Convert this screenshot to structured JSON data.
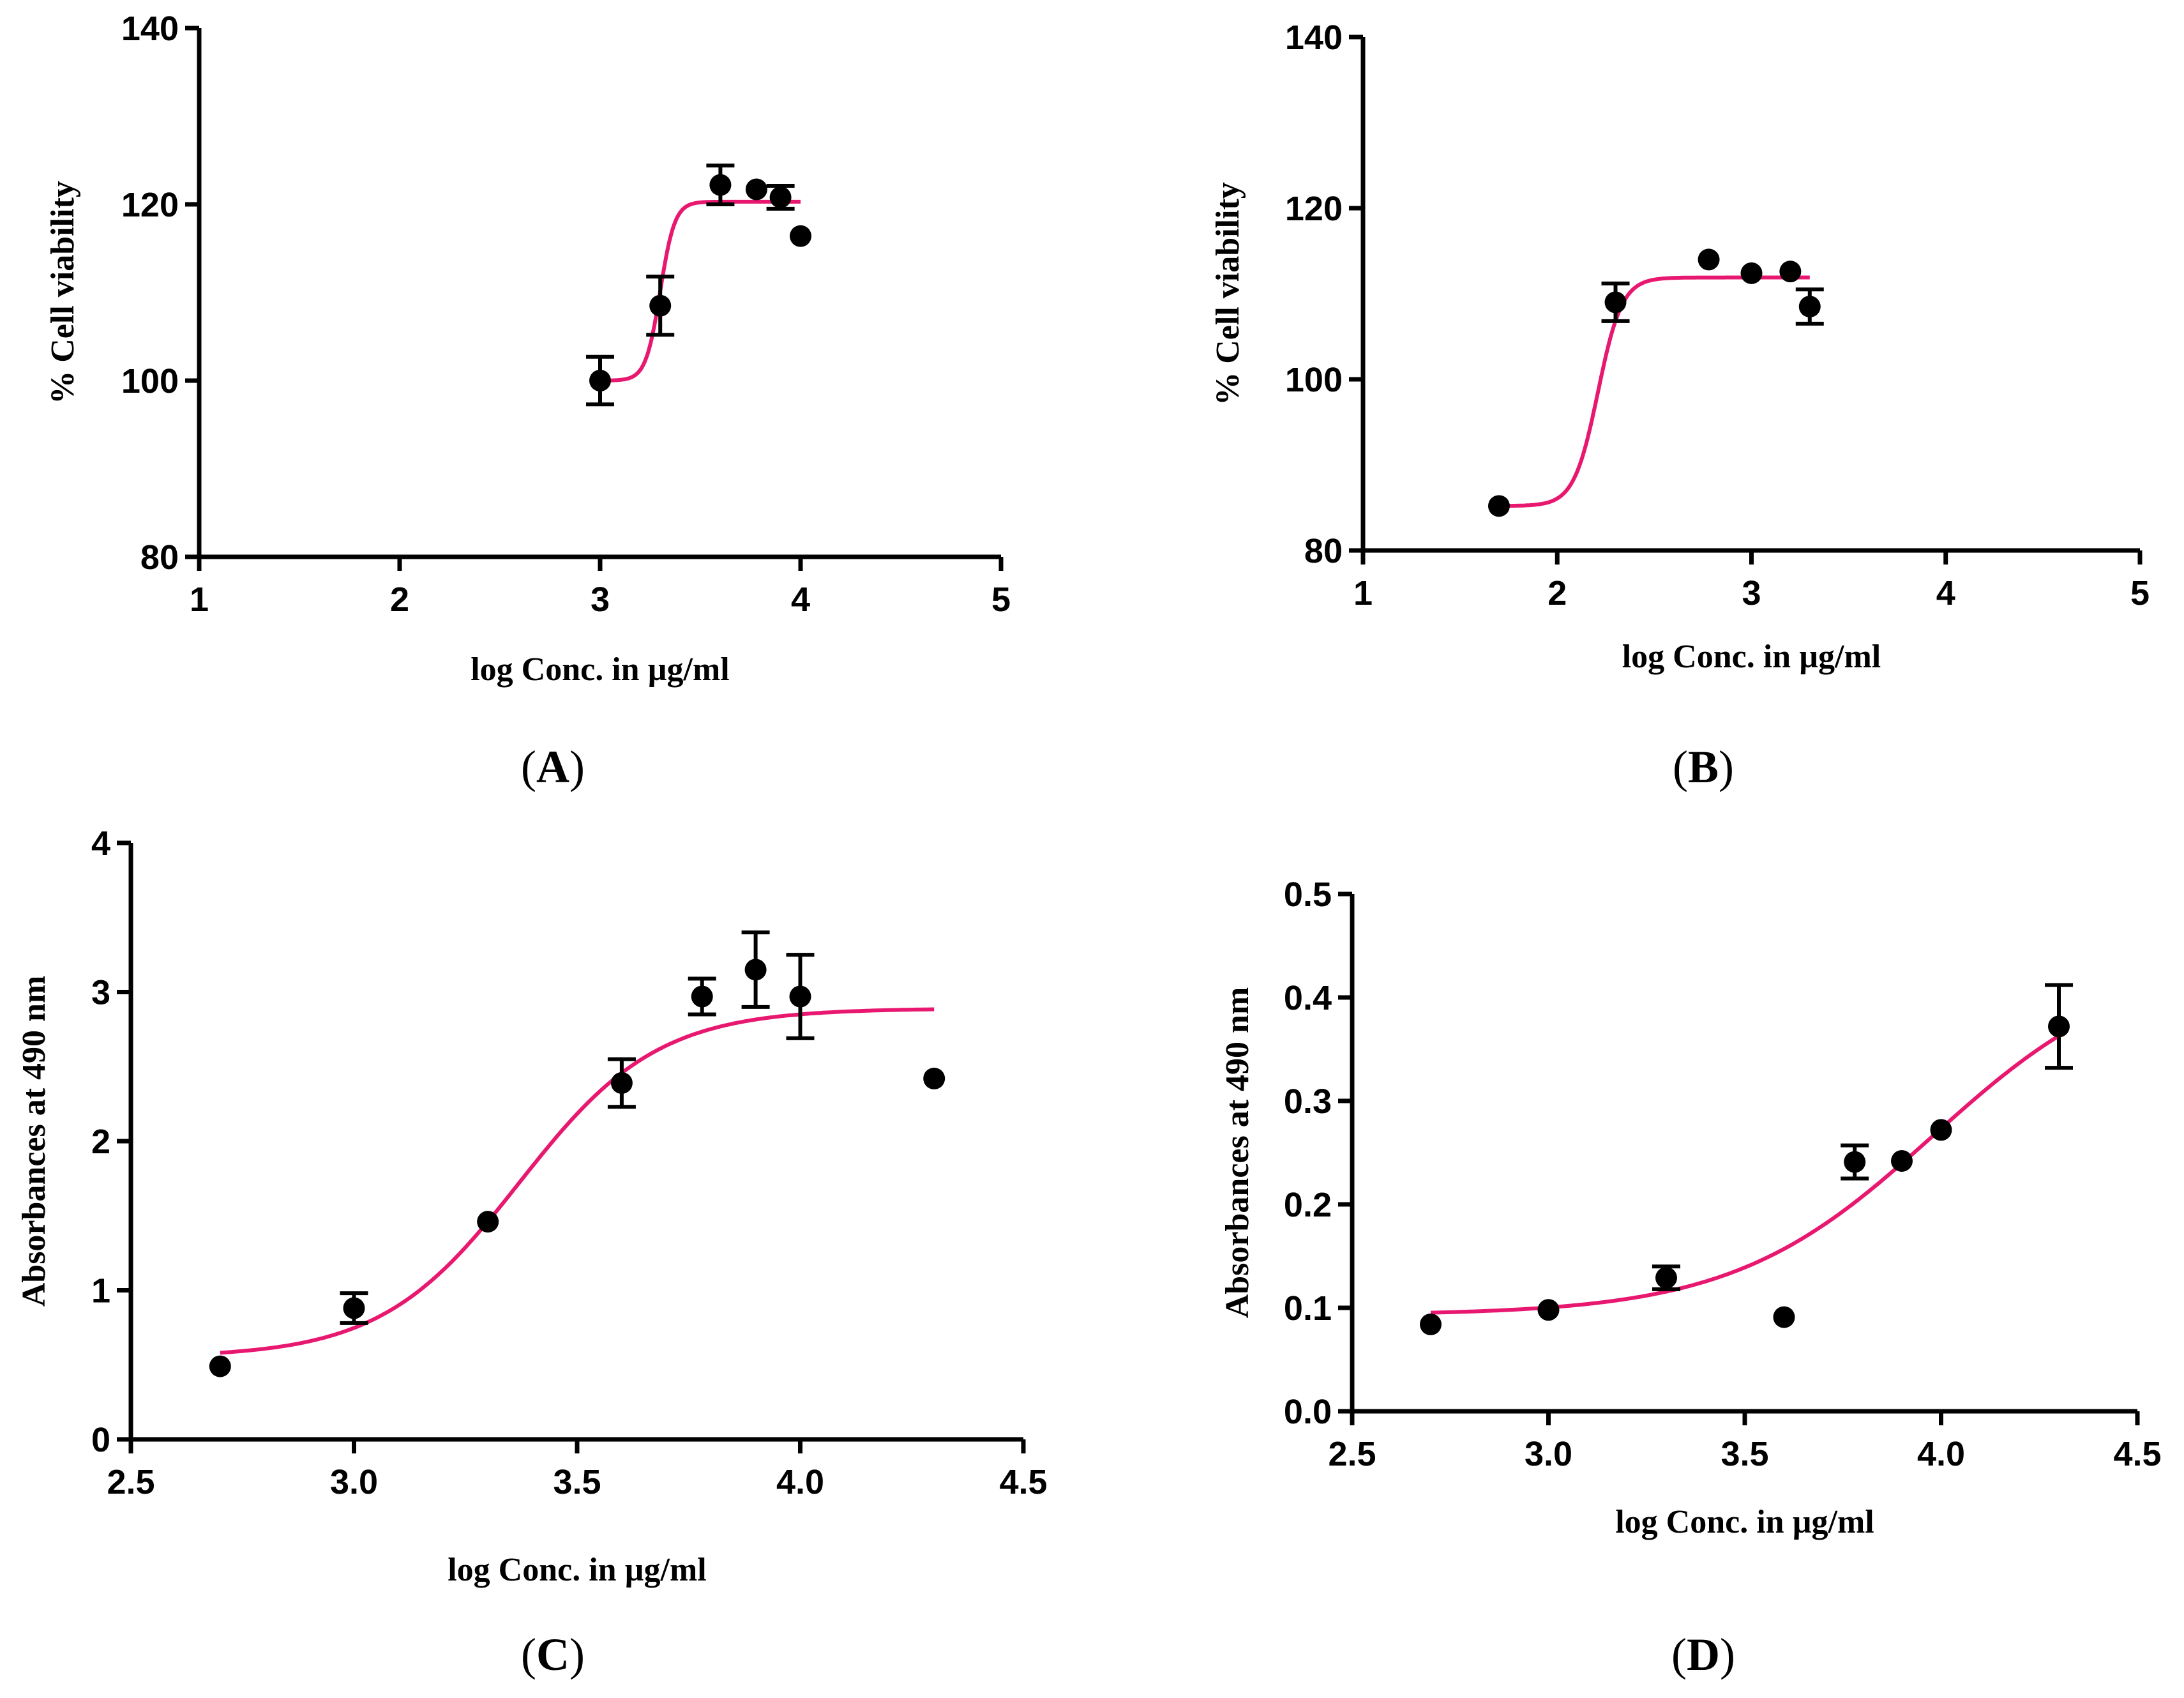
{
  "chart_data": [
    {
      "id": "A",
      "type": "scatter",
      "panel_label": "A",
      "xlabel": "log Conc. in µg/ml",
      "ylabel": "% Cell viability",
      "xlim": [
        1,
        5
      ],
      "ylim": [
        80,
        140
      ],
      "xticks": [
        1,
        2,
        3,
        4,
        5
      ],
      "yticks": [
        80,
        100,
        120,
        140
      ],
      "xtick_labels": [
        "1",
        "2",
        "3",
        "4",
        "5"
      ],
      "ytick_labels": [
        "80",
        "100",
        "120",
        "140"
      ],
      "points": [
        {
          "x": 3.0,
          "y": 100.0,
          "err": 2.7
        },
        {
          "x": 3.3,
          "y": 108.5,
          "err": 3.3
        },
        {
          "x": 3.6,
          "y": 122.2,
          "err": 2.2
        },
        {
          "x": 3.78,
          "y": 121.7,
          "err": 0
        },
        {
          "x": 3.9,
          "y": 120.8,
          "err": 1.3
        },
        {
          "x": 4.0,
          "y": 116.4,
          "err": 0
        }
      ],
      "fit": {
        "model": "sigmoid",
        "bottom": 100.0,
        "top": 120.3,
        "logEC50": 3.3,
        "hill": 12,
        "x_range": [
          3.0,
          4.0
        ]
      },
      "curve_color": "#e8176f",
      "grid": false
    },
    {
      "id": "B",
      "type": "scatter",
      "panel_label": "B",
      "xlabel": "log Conc. in µg/ml",
      "ylabel": "% Cell viability",
      "xlim": [
        1,
        5
      ],
      "ylim": [
        80,
        140
      ],
      "xticks": [
        1,
        2,
        3,
        4,
        5
      ],
      "yticks": [
        80,
        100,
        120,
        140
      ],
      "xtick_labels": [
        "1",
        "2",
        "3",
        "4",
        "5"
      ],
      "ytick_labels": [
        "80",
        "100",
        "120",
        "140"
      ],
      "points": [
        {
          "x": 1.7,
          "y": 85.2,
          "err": 0
        },
        {
          "x": 2.3,
          "y": 109.0,
          "err": 2.2
        },
        {
          "x": 2.78,
          "y": 114.0,
          "err": 0
        },
        {
          "x": 3.0,
          "y": 112.4,
          "err": 0
        },
        {
          "x": 3.2,
          "y": 112.6,
          "err": 0
        },
        {
          "x": 3.3,
          "y": 108.5,
          "err": 2.0
        }
      ],
      "fit": {
        "model": "sigmoid",
        "bottom": 85.2,
        "top": 111.9,
        "logEC50": 2.21,
        "hill": 7,
        "x_range": [
          1.7,
          3.3
        ]
      },
      "curve_color": "#e8176f",
      "grid": false
    },
    {
      "id": "C",
      "type": "scatter",
      "panel_label": "C",
      "xlabel": "log Conc. in µg/ml",
      "ylabel": "Absorbances at 490 nm",
      "xlim": [
        2.5,
        4.5
      ],
      "ylim": [
        0,
        4
      ],
      "xticks": [
        2.5,
        3.0,
        3.5,
        4.0,
        4.5
      ],
      "yticks": [
        0,
        1,
        2,
        3,
        4
      ],
      "xtick_labels": [
        "2.5",
        "3.0",
        "3.5",
        "4.0",
        "4.5"
      ],
      "ytick_labels": [
        "0",
        "1",
        "2",
        "3",
        "4"
      ],
      "points": [
        {
          "x": 2.7,
          "y": 0.49,
          "err": 0
        },
        {
          "x": 3.0,
          "y": 0.88,
          "err": 0.1
        },
        {
          "x": 3.3,
          "y": 1.46,
          "err": 0
        },
        {
          "x": 3.6,
          "y": 2.39,
          "err": 0.16
        },
        {
          "x": 3.78,
          "y": 2.97,
          "err": 0.12
        },
        {
          "x": 3.9,
          "y": 3.15,
          "err": 0.25
        },
        {
          "x": 4.0,
          "y": 2.97,
          "err": 0.28
        },
        {
          "x": 4.3,
          "y": 2.42,
          "err": 0
        }
      ],
      "fit": {
        "model": "sigmoid",
        "bottom": 0.55,
        "top": 2.89,
        "logEC50": 3.37,
        "hill": 2.8,
        "x_range": [
          2.7,
          4.3
        ]
      },
      "curve_color": "#e8176f",
      "grid": false
    },
    {
      "id": "D",
      "type": "scatter",
      "panel_label": "D",
      "xlabel": "log Conc. in µg/ml",
      "ylabel": "Absorbances at 490 nm",
      "xlim": [
        2.5,
        4.5
      ],
      "ylim": [
        0,
        0.5
      ],
      "xticks": [
        2.5,
        3.0,
        3.5,
        4.0,
        4.5
      ],
      "yticks": [
        0,
        0.1,
        0.2,
        0.3,
        0.4,
        0.5
      ],
      "xtick_labels": [
        "2.5",
        "3.0",
        "3.5",
        "4.0",
        "4.5"
      ],
      "ytick_labels": [
        "0.0",
        "0.1",
        "0.2",
        "0.3",
        "0.4",
        "0.5"
      ],
      "points": [
        {
          "x": 2.7,
          "y": 0.084,
          "err": 0
        },
        {
          "x": 3.0,
          "y": 0.098,
          "err": 0
        },
        {
          "x": 3.3,
          "y": 0.129,
          "err": 0.011
        },
        {
          "x": 3.6,
          "y": 0.091,
          "err": 0
        },
        {
          "x": 3.78,
          "y": 0.241,
          "err": 0.016
        },
        {
          "x": 3.9,
          "y": 0.242,
          "err": 0
        },
        {
          "x": 4.0,
          "y": 0.272,
          "err": 0
        },
        {
          "x": 4.3,
          "y": 0.372,
          "err": 0.04
        }
      ],
      "fit": {
        "model": "sigmoid",
        "bottom": 0.093,
        "top": 0.44,
        "logEC50": 3.98,
        "hill": 1.7,
        "x_range": [
          2.7,
          4.3
        ]
      },
      "curve_color": "#e8176f",
      "grid": false
    }
  ]
}
